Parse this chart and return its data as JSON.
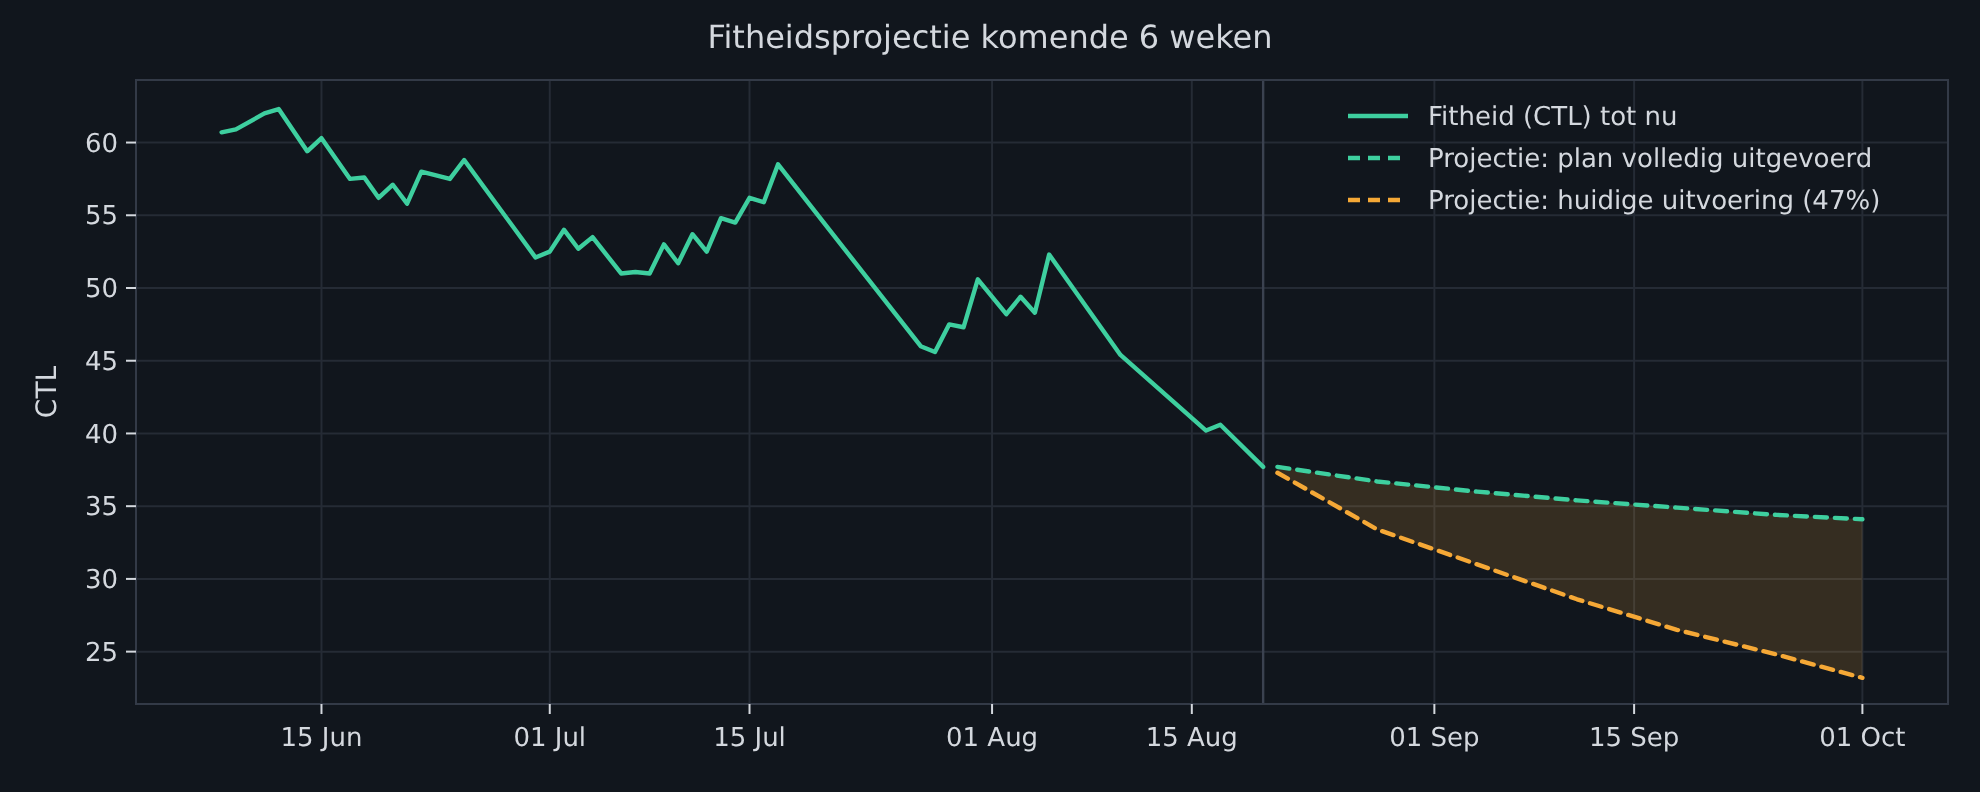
{
  "chart_data": {
    "type": "line",
    "title": "Fitheidsprojectie komende 6 weken",
    "ylabel": "CTL",
    "xlim": [
      "--06-02",
      "--10-07"
    ],
    "ylim": [
      21.4,
      64.3
    ],
    "xticks": [
      {
        "value": "--06-15",
        "label": "15 Jun"
      },
      {
        "value": "--07-01",
        "label": "01 Jul"
      },
      {
        "value": "--07-15",
        "label": "15 Jul"
      },
      {
        "value": "--08-01",
        "label": "01 Aug"
      },
      {
        "value": "--08-15",
        "label": "15 Aug"
      },
      {
        "value": "--09-01",
        "label": "01 Sep"
      },
      {
        "value": "--09-15",
        "label": "15 Sep"
      },
      {
        "value": "--10-01",
        "label": "01 Oct"
      }
    ],
    "yticks": [
      25,
      30,
      35,
      40,
      45,
      50,
      55,
      60
    ],
    "grid": true,
    "legend": "top right",
    "ref_lines": [
      {
        "axis": "x",
        "value": "--08-20",
        "color": "#3b4250"
      }
    ],
    "series": [
      {
        "name": "Fitheid (CTL) tot nu",
        "color": "#3ecf9f",
        "line_style": "solid",
        "x": [
          "--06-08",
          "--06-09",
          "--06-11",
          "--06-12",
          "--06-14",
          "--06-15",
          "--06-17",
          "--06-18",
          "--06-19",
          "--06-20",
          "--06-21",
          "--06-22",
          "--06-24",
          "--06-25",
          "--06-30",
          "--07-01",
          "--07-02",
          "--07-03",
          "--07-04",
          "--07-06",
          "--07-07",
          "--07-08",
          "--07-09",
          "--07-10",
          "--07-11",
          "--07-12",
          "--07-13",
          "--07-14",
          "--07-15",
          "--07-16",
          "--07-17",
          "--07-27",
          "--07-28",
          "--07-29",
          "--07-30",
          "--07-31",
          "--08-02",
          "--08-03",
          "--08-04",
          "--08-05",
          "--08-10",
          "--08-16",
          "--08-17",
          "--08-20"
        ],
        "values": [
          60.7,
          60.9,
          62.0,
          62.3,
          59.4,
          60.3,
          57.5,
          57.6,
          56.2,
          57.1,
          55.8,
          58.0,
          57.5,
          58.8,
          52.1,
          52.5,
          54.0,
          52.7,
          53.5,
          51.0,
          51.1,
          51.0,
          53.0,
          51.7,
          53.7,
          52.5,
          54.8,
          54.5,
          56.2,
          55.9,
          58.5,
          46.0,
          45.6,
          47.5,
          47.3,
          50.6,
          48.2,
          49.4,
          48.3,
          52.3,
          45.4,
          40.2,
          40.6,
          37.7
        ]
      },
      {
        "name": "Projectie: plan volledig uitgevoerd",
        "color": "#3ecf9f",
        "line_style": "dashed",
        "x": [
          "--08-21",
          "--08-28",
          "--09-04",
          "--09-11",
          "--09-18",
          "--09-25",
          "--10-01"
        ],
        "values": [
          37.7,
          36.7,
          36.0,
          35.4,
          34.9,
          34.4,
          34.1
        ],
        "upper": [
          37.7,
          36.7,
          36.0,
          35.4,
          34.9,
          34.4,
          34.1
        ],
        "lower": [
          37.3,
          33.4,
          31.0,
          28.6,
          26.5,
          24.8,
          23.2
        ]
      },
      {
        "name": "Projectie: huidige uitvoering (47%)",
        "color": "#f5a836",
        "line_style": "dashed",
        "x": [
          "--08-21",
          "--08-28",
          "--09-04",
          "--09-11",
          "--09-18",
          "--09-25",
          "--10-01"
        ],
        "values": [
          37.3,
          33.4,
          31.0,
          28.6,
          26.5,
          24.8,
          23.2
        ]
      }
    ]
  }
}
